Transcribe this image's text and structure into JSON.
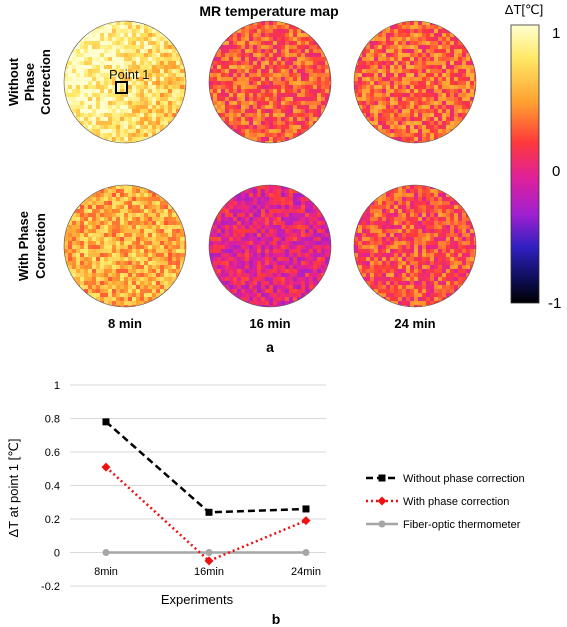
{
  "panel_a": {
    "title": "MR temperature map",
    "row_labels": [
      [
        "Without",
        "Phase",
        "Correction"
      ],
      [
        "With Phase",
        "Correction"
      ]
    ],
    "column_labels": [
      "8 min",
      "16 min",
      "24 min"
    ],
    "roi_label": "Point 1",
    "colorbar": {
      "label": "ΔT[℃]",
      "ticks": [
        "1",
        "0",
        "-1"
      ],
      "range": [
        -1,
        1
      ]
    },
    "panel_label": "a",
    "maps": [
      {
        "row": 0,
        "col": 0,
        "mean_dT": 0.78
      },
      {
        "row": 0,
        "col": 1,
        "mean_dT": 0.24
      },
      {
        "row": 0,
        "col": 2,
        "mean_dT": 0.26
      },
      {
        "row": 1,
        "col": 0,
        "mean_dT": 0.51
      },
      {
        "row": 1,
        "col": 1,
        "mean_dT": -0.05
      },
      {
        "row": 1,
        "col": 2,
        "mean_dT": 0.19
      }
    ]
  },
  "chart_data": {
    "type": "line",
    "categories": [
      "8min",
      "16min",
      "24min"
    ],
    "series": [
      {
        "name": "Without phase correction",
        "values": [
          0.78,
          0.24,
          0.26
        ],
        "color": "#000000",
        "dash": "dashed",
        "marker": "square"
      },
      {
        "name": "With phase correction",
        "values": [
          0.51,
          -0.05,
          0.19
        ],
        "color": "#ee1111",
        "dash": "dotted",
        "marker": "diamond"
      },
      {
        "name": "Fiber-optic thermometer",
        "values": [
          0,
          0,
          0
        ],
        "color": "#a6a6a6",
        "dash": "solid",
        "marker": "circle"
      }
    ],
    "xlabel": "Experiments",
    "ylabel": "ΔT at point 1 [℃]",
    "ylim": [
      -0.2,
      1
    ],
    "yticks": [
      "-0.2",
      "0",
      "0.2",
      "0.4",
      "0.6",
      "0.8",
      "1"
    ],
    "grid": true,
    "legend": "right",
    "panel_label": "b"
  }
}
